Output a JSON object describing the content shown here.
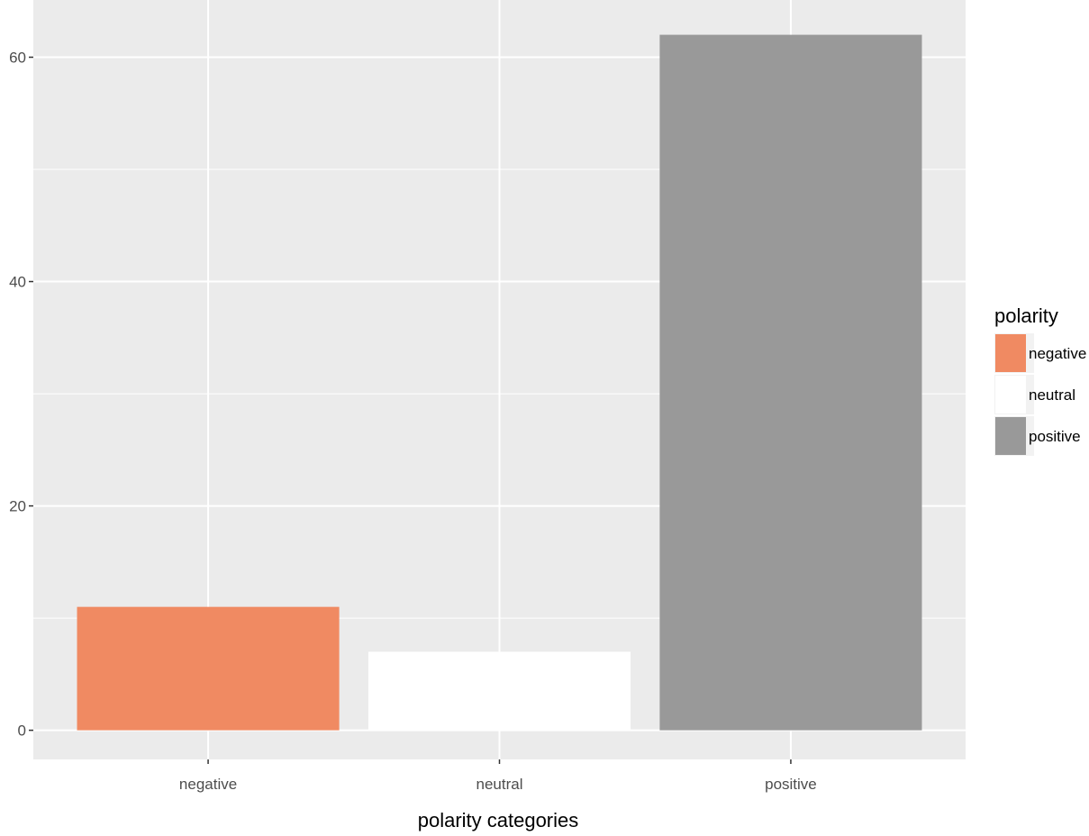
{
  "chart_data": {
    "type": "bar",
    "categories": [
      "negative",
      "neutral",
      "positive"
    ],
    "values": [
      11,
      7,
      62
    ],
    "colors": [
      "#f08a62",
      "#ffffff",
      "#999999"
    ],
    "title": "",
    "xlabel": "polarity categories",
    "ylabel": "",
    "ylim": [
      -2.6,
      65.1
    ],
    "yticks": [
      0,
      20,
      40,
      60
    ],
    "yticks_minor": [
      10,
      30,
      50
    ],
    "grid": true,
    "panel_background": "#ebebeb",
    "legend": {
      "title": "polarity",
      "placement": "right",
      "entries": [
        {
          "label": "negative",
          "color": "#f08a62"
        },
        {
          "label": "neutral",
          "color": "#ffffff"
        },
        {
          "label": "positive",
          "color": "#999999"
        }
      ]
    }
  }
}
